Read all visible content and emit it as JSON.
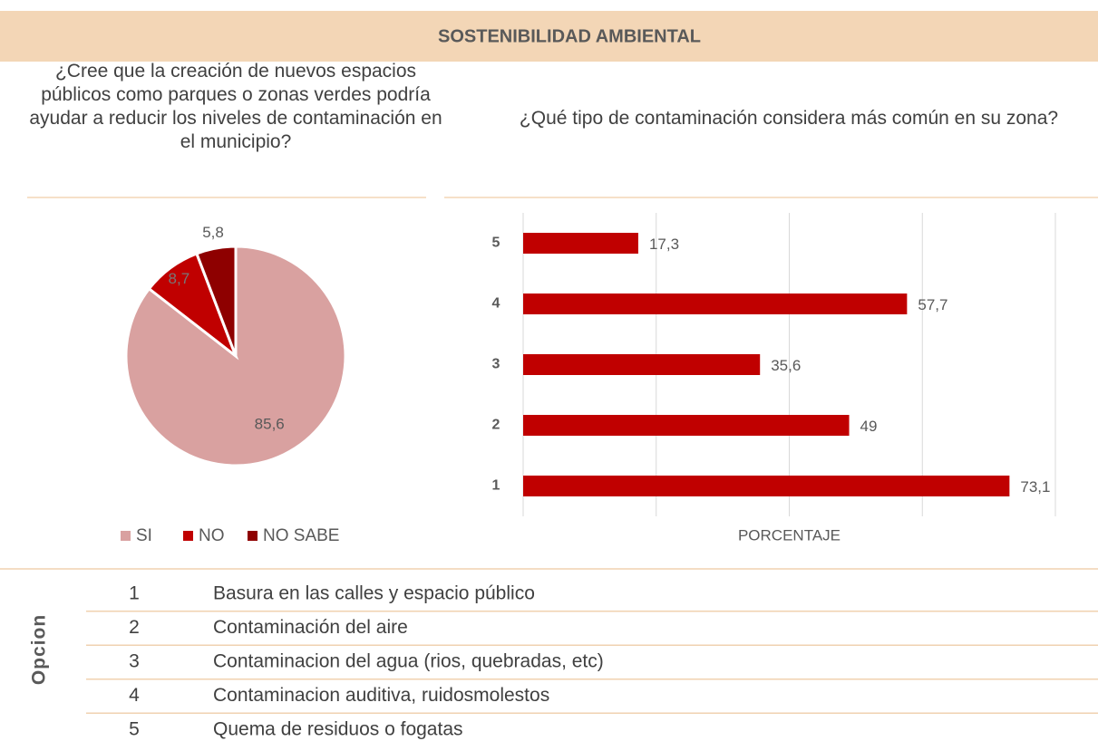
{
  "header": {
    "title": "SOSTENIBILIDAD AMBIENTAL"
  },
  "chart_data": [
    {
      "type": "pie",
      "title": "¿Cree que la creación de nuevos espacios públicos como parques o zonas verdes podría ayudar a reducir los niveles de contaminación en el municipio?",
      "categories": [
        "SI",
        "NO",
        "NO SABE"
      ],
      "values": [
        85.6,
        8.7,
        5.8
      ],
      "value_labels": [
        "85,6",
        "8,7",
        "5,8"
      ],
      "colors": [
        "#d9a1a0",
        "#c00000",
        "#8e0000"
      ],
      "legend": "bottom"
    },
    {
      "type": "hbar",
      "title": "¿Qué tipo de contaminación considera más común en su zona?",
      "categories": [
        "1",
        "2",
        "3",
        "4",
        "5"
      ],
      "values": [
        73.1,
        49,
        35.6,
        57.7,
        17.3
      ],
      "value_labels": [
        "73,1",
        "49",
        "35,6",
        "57,7",
        "17,3"
      ],
      "color": "#c00000",
      "xlabel": "PORCENTAJE",
      "xlim": [
        0,
        80
      ],
      "xticks": [
        0,
        20,
        40,
        60,
        80
      ],
      "grid": true
    }
  ],
  "table": {
    "header": "Opcion",
    "rows": [
      [
        "1",
        "Basura en las calles y espacio público"
      ],
      [
        "2",
        "Contaminación del aire"
      ],
      [
        "3",
        "Contaminacion del agua (rios, quebradas, etc)"
      ],
      [
        "4",
        "Contaminacion auditiva, ruidosmolestos"
      ],
      [
        "5",
        "Quema de residuos o fogatas"
      ]
    ]
  }
}
